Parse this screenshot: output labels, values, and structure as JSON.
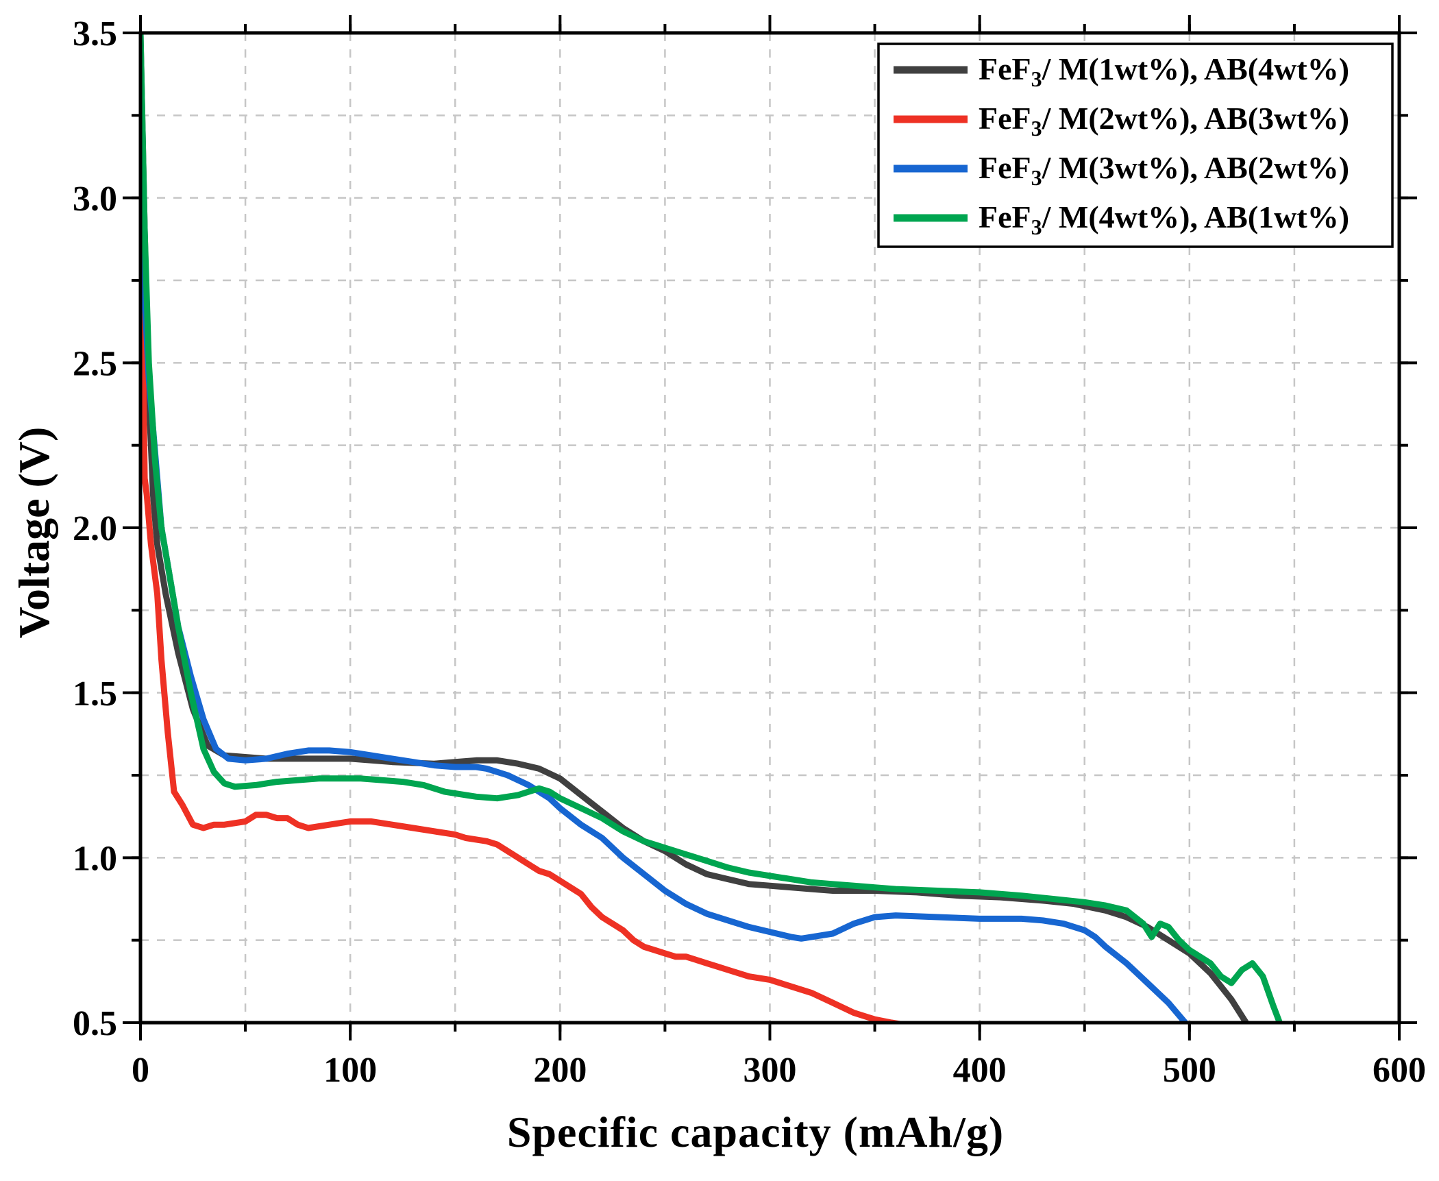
{
  "figure": {
    "background": "#ffffff"
  },
  "colors": {
    "frame": "#000000",
    "grid": "#c6c6c6",
    "tick_label": "#000000"
  },
  "chart_data": {
    "type": "line",
    "title": "",
    "xlabel": "Specific capacity (mAh/g)",
    "ylabel": "Voltage (V)",
    "xlim": [
      0,
      600
    ],
    "ylim": [
      0.5,
      3.5
    ],
    "x_major_tick": 100,
    "x_minor_tick": 50,
    "y_major_tick": 0.5,
    "y_minor_tick": 0.25,
    "grid": "dashed lines at both major and minor tick positions",
    "legend_position": "top-right inside plot",
    "x_tick_labels": [
      "0",
      "100",
      "200",
      "300",
      "400",
      "500",
      "600"
    ],
    "y_tick_labels": [
      "0.5",
      "1.0",
      "1.5",
      "2.0",
      "2.5",
      "3.0",
      "3.5"
    ],
    "series": [
      {
        "name_prefix": "FeF",
        "name_sub": "3",
        "name_rest": "/ M(1wt%), AB(4wt%)",
        "color": "#404040",
        "points": [
          [
            0,
            3.5
          ],
          [
            2,
            2.9
          ],
          [
            4,
            2.4
          ],
          [
            6,
            2.1
          ],
          [
            8,
            1.95
          ],
          [
            12,
            1.8
          ],
          [
            18,
            1.62
          ],
          [
            25,
            1.45
          ],
          [
            32,
            1.34
          ],
          [
            40,
            1.31
          ],
          [
            60,
            1.3
          ],
          [
            80,
            1.3
          ],
          [
            100,
            1.3
          ],
          [
            120,
            1.29
          ],
          [
            140,
            1.285
          ],
          [
            150,
            1.29
          ],
          [
            160,
            1.295
          ],
          [
            170,
            1.295
          ],
          [
            180,
            1.285
          ],
          [
            190,
            1.27
          ],
          [
            200,
            1.24
          ],
          [
            210,
            1.19
          ],
          [
            220,
            1.14
          ],
          [
            230,
            1.09
          ],
          [
            240,
            1.05
          ],
          [
            250,
            1.02
          ],
          [
            260,
            0.98
          ],
          [
            270,
            0.95
          ],
          [
            280,
            0.935
          ],
          [
            290,
            0.92
          ],
          [
            300,
            0.915
          ],
          [
            310,
            0.91
          ],
          [
            320,
            0.905
          ],
          [
            330,
            0.9
          ],
          [
            350,
            0.9
          ],
          [
            370,
            0.895
          ],
          [
            390,
            0.885
          ],
          [
            410,
            0.88
          ],
          [
            430,
            0.87
          ],
          [
            445,
            0.86
          ],
          [
            460,
            0.84
          ],
          [
            470,
            0.82
          ],
          [
            480,
            0.79
          ],
          [
            490,
            0.75
          ],
          [
            500,
            0.71
          ],
          [
            510,
            0.65
          ],
          [
            520,
            0.57
          ],
          [
            527,
            0.5
          ]
        ]
      },
      {
        "name_prefix": "FeF",
        "name_sub": "3",
        "name_rest": "/ M(2wt%), AB(3wt%)",
        "color": "#ee3124",
        "points": [
          [
            0,
            3.05
          ],
          [
            1,
            2.6
          ],
          [
            2,
            2.15
          ],
          [
            3,
            2.1
          ],
          [
            5,
            1.95
          ],
          [
            8,
            1.8
          ],
          [
            10,
            1.6
          ],
          [
            13,
            1.38
          ],
          [
            16,
            1.2
          ],
          [
            20,
            1.16
          ],
          [
            25,
            1.1
          ],
          [
            30,
            1.09
          ],
          [
            35,
            1.1
          ],
          [
            40,
            1.1
          ],
          [
            50,
            1.11
          ],
          [
            55,
            1.13
          ],
          [
            60,
            1.13
          ],
          [
            65,
            1.12
          ],
          [
            70,
            1.12
          ],
          [
            75,
            1.1
          ],
          [
            80,
            1.09
          ],
          [
            90,
            1.1
          ],
          [
            100,
            1.11
          ],
          [
            110,
            1.11
          ],
          [
            120,
            1.1
          ],
          [
            130,
            1.09
          ],
          [
            140,
            1.08
          ],
          [
            150,
            1.07
          ],
          [
            155,
            1.06
          ],
          [
            165,
            1.05
          ],
          [
            170,
            1.04
          ],
          [
            175,
            1.02
          ],
          [
            180,
            1.0
          ],
          [
            185,
            0.98
          ],
          [
            190,
            0.96
          ],
          [
            195,
            0.95
          ],
          [
            200,
            0.93
          ],
          [
            205,
            0.91
          ],
          [
            210,
            0.89
          ],
          [
            215,
            0.85
          ],
          [
            220,
            0.82
          ],
          [
            225,
            0.8
          ],
          [
            230,
            0.78
          ],
          [
            235,
            0.75
          ],
          [
            240,
            0.73
          ],
          [
            245,
            0.72
          ],
          [
            250,
            0.71
          ],
          [
            255,
            0.7
          ],
          [
            260,
            0.7
          ],
          [
            265,
            0.69
          ],
          [
            270,
            0.68
          ],
          [
            275,
            0.67
          ],
          [
            280,
            0.66
          ],
          [
            290,
            0.64
          ],
          [
            300,
            0.63
          ],
          [
            310,
            0.61
          ],
          [
            320,
            0.59
          ],
          [
            330,
            0.56
          ],
          [
            340,
            0.53
          ],
          [
            350,
            0.51
          ],
          [
            358,
            0.5
          ],
          [
            363,
            0.495
          ]
        ]
      },
      {
        "name_prefix": "FeF",
        "name_sub": "3",
        "name_rest": "/ M(3wt%), AB(2wt%)",
        "color": "#1766d1",
        "points": [
          [
            0,
            3.3
          ],
          [
            1,
            3.0
          ],
          [
            2,
            2.7
          ],
          [
            4,
            2.45
          ],
          [
            6,
            2.3
          ],
          [
            8,
            2.15
          ],
          [
            10,
            2.0
          ],
          [
            14,
            1.85
          ],
          [
            18,
            1.7
          ],
          [
            24,
            1.55
          ],
          [
            30,
            1.42
          ],
          [
            36,
            1.33
          ],
          [
            42,
            1.3
          ],
          [
            50,
            1.295
          ],
          [
            60,
            1.3
          ],
          [
            70,
            1.315
          ],
          [
            80,
            1.325
          ],
          [
            90,
            1.325
          ],
          [
            100,
            1.32
          ],
          [
            110,
            1.31
          ],
          [
            120,
            1.3
          ],
          [
            130,
            1.29
          ],
          [
            140,
            1.28
          ],
          [
            150,
            1.275
          ],
          [
            160,
            1.275
          ],
          [
            165,
            1.27
          ],
          [
            175,
            1.25
          ],
          [
            185,
            1.22
          ],
          [
            190,
            1.2
          ],
          [
            195,
            1.18
          ],
          [
            200,
            1.15
          ],
          [
            210,
            1.1
          ],
          [
            220,
            1.06
          ],
          [
            230,
            1.0
          ],
          [
            240,
            0.95
          ],
          [
            250,
            0.9
          ],
          [
            260,
            0.86
          ],
          [
            270,
            0.83
          ],
          [
            280,
            0.81
          ],
          [
            290,
            0.79
          ],
          [
            300,
            0.775
          ],
          [
            310,
            0.76
          ],
          [
            315,
            0.755
          ],
          [
            320,
            0.76
          ],
          [
            330,
            0.77
          ],
          [
            340,
            0.8
          ],
          [
            350,
            0.82
          ],
          [
            360,
            0.825
          ],
          [
            380,
            0.82
          ],
          [
            400,
            0.815
          ],
          [
            420,
            0.815
          ],
          [
            430,
            0.81
          ],
          [
            440,
            0.8
          ],
          [
            450,
            0.78
          ],
          [
            455,
            0.76
          ],
          [
            460,
            0.73
          ],
          [
            470,
            0.68
          ],
          [
            480,
            0.62
          ],
          [
            490,
            0.56
          ],
          [
            498,
            0.5
          ]
        ]
      },
      {
        "name_prefix": "FeF",
        "name_sub": "3",
        "name_rest": "/ M(4wt%), AB(1wt%)",
        "color": "#00a550",
        "points": [
          [
            0,
            3.5
          ],
          [
            2,
            2.9
          ],
          [
            4,
            2.5
          ],
          [
            7,
            2.2
          ],
          [
            10,
            2.0
          ],
          [
            14,
            1.85
          ],
          [
            18,
            1.7
          ],
          [
            24,
            1.5
          ],
          [
            30,
            1.33
          ],
          [
            35,
            1.26
          ],
          [
            40,
            1.225
          ],
          [
            45,
            1.215
          ],
          [
            55,
            1.22
          ],
          [
            65,
            1.23
          ],
          [
            75,
            1.235
          ],
          [
            85,
            1.24
          ],
          [
            95,
            1.24
          ],
          [
            105,
            1.24
          ],
          [
            115,
            1.235
          ],
          [
            125,
            1.23
          ],
          [
            135,
            1.22
          ],
          [
            145,
            1.2
          ],
          [
            155,
            1.19
          ],
          [
            160,
            1.185
          ],
          [
            170,
            1.18
          ],
          [
            180,
            1.19
          ],
          [
            185,
            1.2
          ],
          [
            190,
            1.21
          ],
          [
            195,
            1.2
          ],
          [
            200,
            1.18
          ],
          [
            210,
            1.15
          ],
          [
            220,
            1.12
          ],
          [
            230,
            1.08
          ],
          [
            240,
            1.05
          ],
          [
            250,
            1.03
          ],
          [
            260,
            1.01
          ],
          [
            270,
            0.99
          ],
          [
            280,
            0.97
          ],
          [
            290,
            0.955
          ],
          [
            300,
            0.945
          ],
          [
            310,
            0.935
          ],
          [
            320,
            0.925
          ],
          [
            330,
            0.92
          ],
          [
            340,
            0.915
          ],
          [
            350,
            0.91
          ],
          [
            360,
            0.905
          ],
          [
            380,
            0.9
          ],
          [
            400,
            0.895
          ],
          [
            420,
            0.885
          ],
          [
            435,
            0.875
          ],
          [
            450,
            0.865
          ],
          [
            460,
            0.855
          ],
          [
            470,
            0.84
          ],
          [
            478,
            0.8
          ],
          [
            482,
            0.76
          ],
          [
            486,
            0.8
          ],
          [
            490,
            0.79
          ],
          [
            495,
            0.75
          ],
          [
            500,
            0.72
          ],
          [
            505,
            0.7
          ],
          [
            510,
            0.68
          ],
          [
            515,
            0.64
          ],
          [
            520,
            0.62
          ],
          [
            525,
            0.66
          ],
          [
            530,
            0.68
          ],
          [
            535,
            0.64
          ],
          [
            540,
            0.55
          ],
          [
            543,
            0.5
          ]
        ]
      }
    ]
  }
}
